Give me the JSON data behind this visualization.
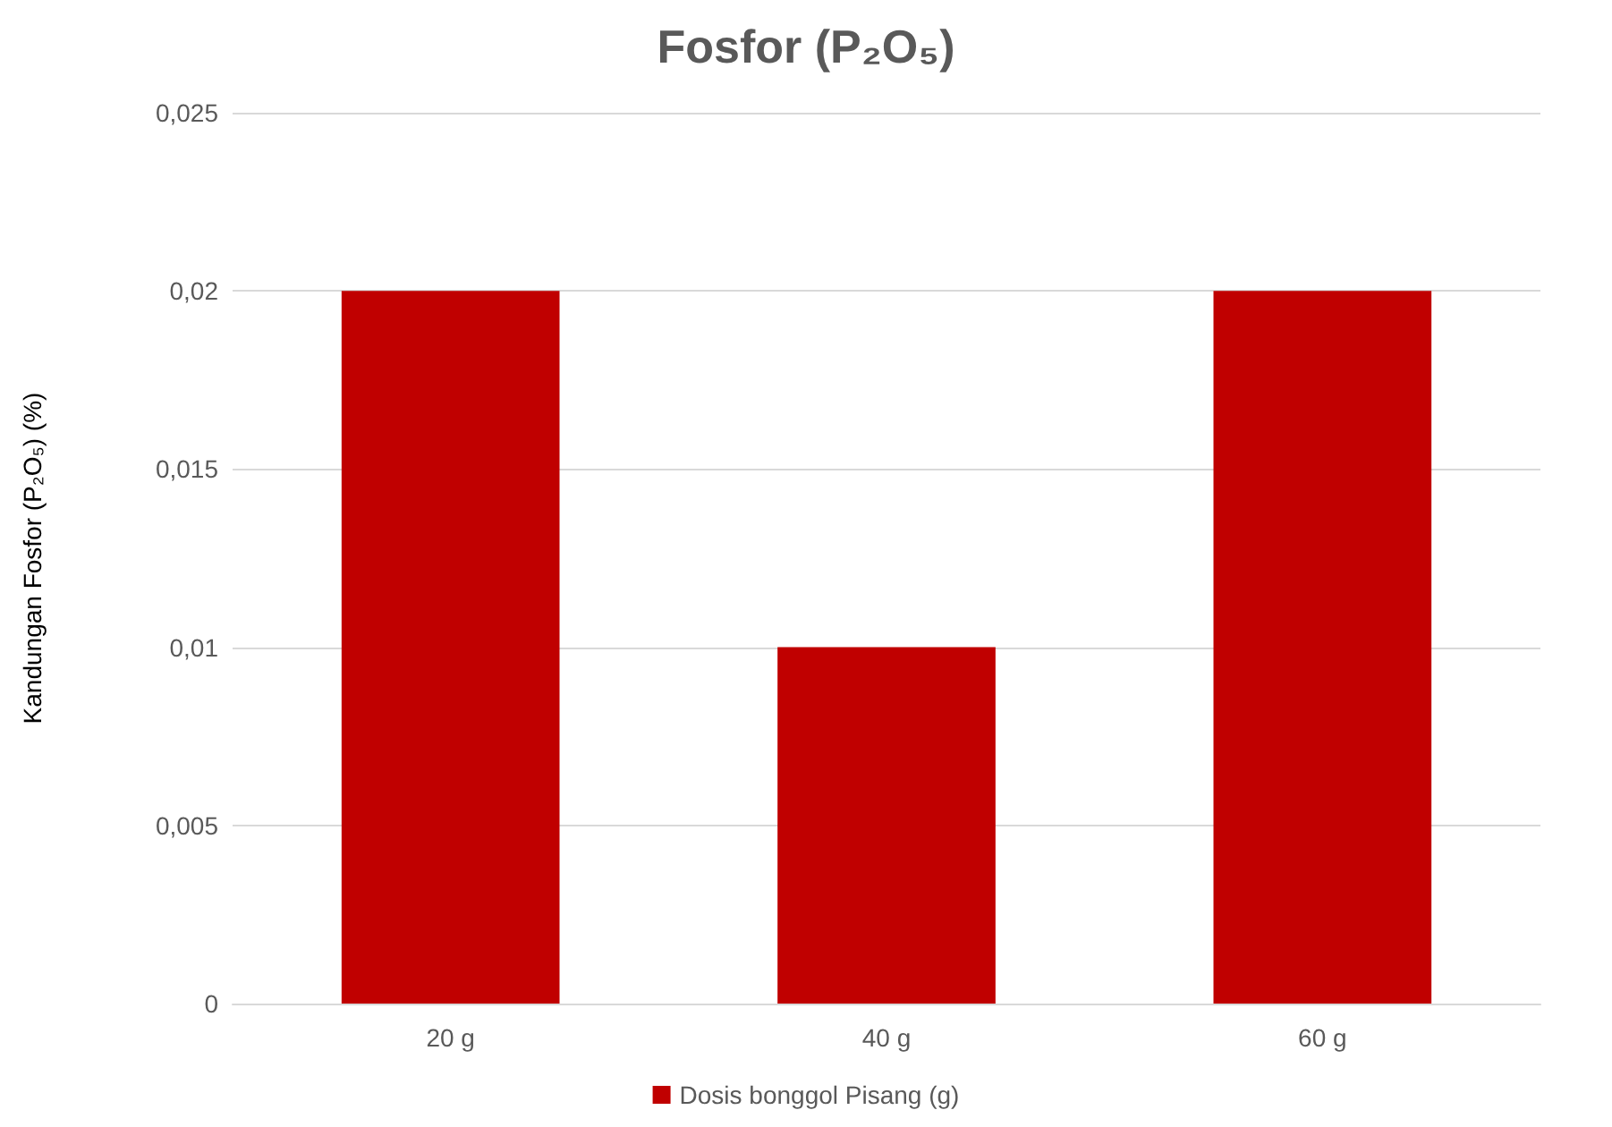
{
  "chart_data": {
    "type": "bar",
    "title": "Fosfor (P₂O₅)",
    "ylabel": "Kandungan Fosfor (P₂O₅) (%)",
    "categories": [
      "20 g",
      "40 g",
      "60 g"
    ],
    "series": [
      {
        "name": "Dosis bonggol Pisang (g)",
        "color": "#c00000",
        "values": [
          0.02,
          0.01,
          0.02
        ]
      }
    ],
    "ylim": [
      0,
      0.025
    ],
    "yticks": [
      {
        "value": 0,
        "label": "0"
      },
      {
        "value": 0.005,
        "label": "0,005"
      },
      {
        "value": 0.01,
        "label": "0,01"
      },
      {
        "value": 0.015,
        "label": "0,015"
      },
      {
        "value": 0.02,
        "label": "0,02"
      },
      {
        "value": 0.025,
        "label": "0,025"
      }
    ],
    "grid": "y",
    "legend": "bottom"
  }
}
